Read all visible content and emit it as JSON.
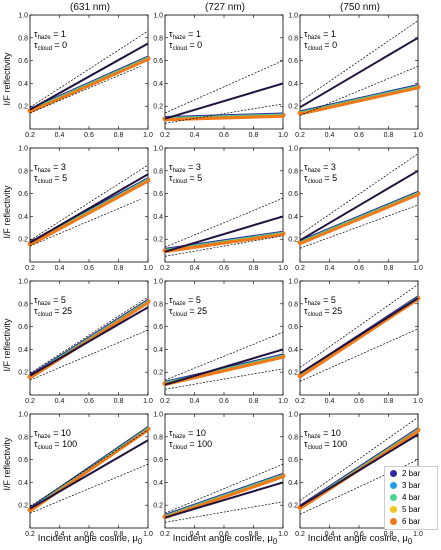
{
  "columns": [
    "(631 nm)",
    "(727 nm)",
    "(750 nm)"
  ],
  "ylabel": "I/F reflectivity",
  "xlabel": "Incident angle cosine, μ",
  "xlabel_sub": "0",
  "rows": [
    {
      "tau_haze": "1",
      "tau_cloud": "0"
    },
    {
      "tau_haze": "3",
      "tau_cloud": "5"
    },
    {
      "tau_haze": "5",
      "tau_cloud": "25"
    },
    {
      "tau_haze": "10",
      "tau_cloud": "100"
    }
  ],
  "legend": [
    {
      "label": "2 bar",
      "color": "#2b2aa8"
    },
    {
      "label": "3 bar",
      "color": "#1fa0e6"
    },
    {
      "label": "4 bar",
      "color": "#49d38c"
    },
    {
      "label": "5 bar",
      "color": "#f0c419"
    },
    {
      "label": "6 bar",
      "color": "#f07a1a"
    }
  ],
  "colors": {
    "observed": "#22123f",
    "envelope": "#000000"
  },
  "chart_data": {
    "type": "line",
    "xlim": [
      0.2,
      1.0
    ],
    "ylim": [
      0.0,
      1.0
    ],
    "xticks": [
      0.2,
      0.4,
      0.6,
      0.8,
      1.0
    ],
    "yticks": [
      0.2,
      0.4,
      0.6,
      0.8,
      1.0
    ],
    "panels": [
      {
        "col": 0,
        "row": 0,
        "observed": [
          [
            0.2,
            0.17
          ],
          [
            1.0,
            0.75
          ]
        ],
        "upper": [
          [
            0.2,
            0.19
          ],
          [
            1.0,
            0.86
          ]
        ],
        "lower": [
          [
            0.2,
            0.14
          ],
          [
            0.95,
            0.55
          ]
        ],
        "models": [
          [
            0.2,
            0.16
          ],
          [
            1.0,
            0.62
          ]
        ]
      },
      {
        "col": 1,
        "row": 0,
        "observed": [
          [
            0.2,
            0.09
          ],
          [
            1.0,
            0.4
          ]
        ],
        "upper": [
          [
            0.2,
            0.14
          ],
          [
            1.0,
            0.6
          ]
        ],
        "lower": [
          [
            0.2,
            0.05
          ],
          [
            1.0,
            0.22
          ]
        ],
        "models": [
          [
            0.2,
            0.09
          ],
          [
            1.0,
            0.12
          ]
        ]
      },
      {
        "col": 2,
        "row": 0,
        "observed": [
          [
            0.2,
            0.19
          ],
          [
            1.0,
            0.8
          ]
        ],
        "upper": [
          [
            0.2,
            0.24
          ],
          [
            1.0,
            0.95
          ]
        ],
        "lower": [
          [
            0.2,
            0.12
          ],
          [
            1.0,
            0.55
          ]
        ],
        "models": [
          [
            0.2,
            0.14
          ],
          [
            1.0,
            0.37
          ]
        ]
      },
      {
        "col": 0,
        "row": 1,
        "observed": [
          [
            0.2,
            0.17
          ],
          [
            1.0,
            0.77
          ]
        ],
        "upper": [
          [
            0.2,
            0.19
          ],
          [
            1.0,
            0.85
          ]
        ],
        "lower": [
          [
            0.2,
            0.14
          ],
          [
            0.95,
            0.55
          ]
        ],
        "models": [
          [
            0.2,
            0.16
          ],
          [
            1.0,
            0.72
          ]
        ]
      },
      {
        "col": 1,
        "row": 1,
        "observed": [
          [
            0.2,
            0.09
          ],
          [
            1.0,
            0.4
          ]
        ],
        "upper": [
          [
            0.2,
            0.13
          ],
          [
            1.0,
            0.56
          ]
        ],
        "lower": [
          [
            0.2,
            0.05
          ],
          [
            1.0,
            0.23
          ]
        ],
        "models": [
          [
            0.2,
            0.1
          ],
          [
            1.0,
            0.25
          ]
        ]
      },
      {
        "col": 2,
        "row": 1,
        "observed": [
          [
            0.2,
            0.19
          ],
          [
            1.0,
            0.8
          ]
        ],
        "upper": [
          [
            0.2,
            0.24
          ],
          [
            1.0,
            0.95
          ]
        ],
        "lower": [
          [
            0.2,
            0.12
          ],
          [
            1.0,
            0.5
          ]
        ],
        "models": [
          [
            0.2,
            0.17
          ],
          [
            1.0,
            0.6
          ]
        ]
      },
      {
        "col": 0,
        "row": 2,
        "observed": [
          [
            0.2,
            0.17
          ],
          [
            1.0,
            0.77
          ]
        ],
        "upper": [
          [
            0.2,
            0.19
          ],
          [
            1.0,
            0.86
          ]
        ],
        "lower": [
          [
            0.2,
            0.13
          ],
          [
            1.0,
            0.57
          ]
        ],
        "models": [
          [
            0.2,
            0.16
          ],
          [
            1.0,
            0.82
          ]
        ]
      },
      {
        "col": 1,
        "row": 2,
        "observed": [
          [
            0.2,
            0.09
          ],
          [
            1.0,
            0.4
          ]
        ],
        "upper": [
          [
            0.2,
            0.13
          ],
          [
            1.0,
            0.55
          ]
        ],
        "lower": [
          [
            0.2,
            0.05
          ],
          [
            1.0,
            0.23
          ]
        ],
        "models": [
          [
            0.2,
            0.1
          ],
          [
            1.0,
            0.34
          ]
        ]
      },
      {
        "col": 2,
        "row": 2,
        "observed": [
          [
            0.2,
            0.19
          ],
          [
            1.0,
            0.85
          ]
        ],
        "upper": [
          [
            0.2,
            0.24
          ],
          [
            1.0,
            0.97
          ]
        ],
        "lower": [
          [
            0.2,
            0.12
          ],
          [
            1.0,
            0.58
          ]
        ],
        "models": [
          [
            0.2,
            0.17
          ],
          [
            1.0,
            0.85
          ]
        ]
      },
      {
        "col": 0,
        "row": 3,
        "observed": [
          [
            0.2,
            0.17
          ],
          [
            1.0,
            0.77
          ]
        ],
        "upper": [
          [
            0.2,
            0.19
          ],
          [
            1.0,
            0.86
          ]
        ],
        "lower": [
          [
            0.2,
            0.13
          ],
          [
            1.0,
            0.56
          ]
        ],
        "models": [
          [
            0.2,
            0.16
          ],
          [
            1.0,
            0.87
          ]
        ]
      },
      {
        "col": 1,
        "row": 3,
        "observed": [
          [
            0.2,
            0.09
          ],
          [
            1.0,
            0.4
          ]
        ],
        "upper": [
          [
            0.2,
            0.13
          ],
          [
            1.0,
            0.56
          ]
        ],
        "lower": [
          [
            0.2,
            0.05
          ],
          [
            1.0,
            0.23
          ]
        ],
        "models": [
          [
            0.2,
            0.1
          ],
          [
            1.0,
            0.46
          ]
        ]
      },
      {
        "col": 2,
        "row": 3,
        "observed": [
          [
            0.2,
            0.19
          ],
          [
            1.0,
            0.82
          ]
        ],
        "upper": [
          [
            0.2,
            0.24
          ],
          [
            1.0,
            0.97
          ]
        ],
        "lower": [
          [
            0.2,
            0.12
          ],
          [
            1.0,
            0.6
          ]
        ],
        "models": [
          [
            0.2,
            0.18
          ],
          [
            1.0,
            0.86
          ]
        ]
      }
    ]
  }
}
